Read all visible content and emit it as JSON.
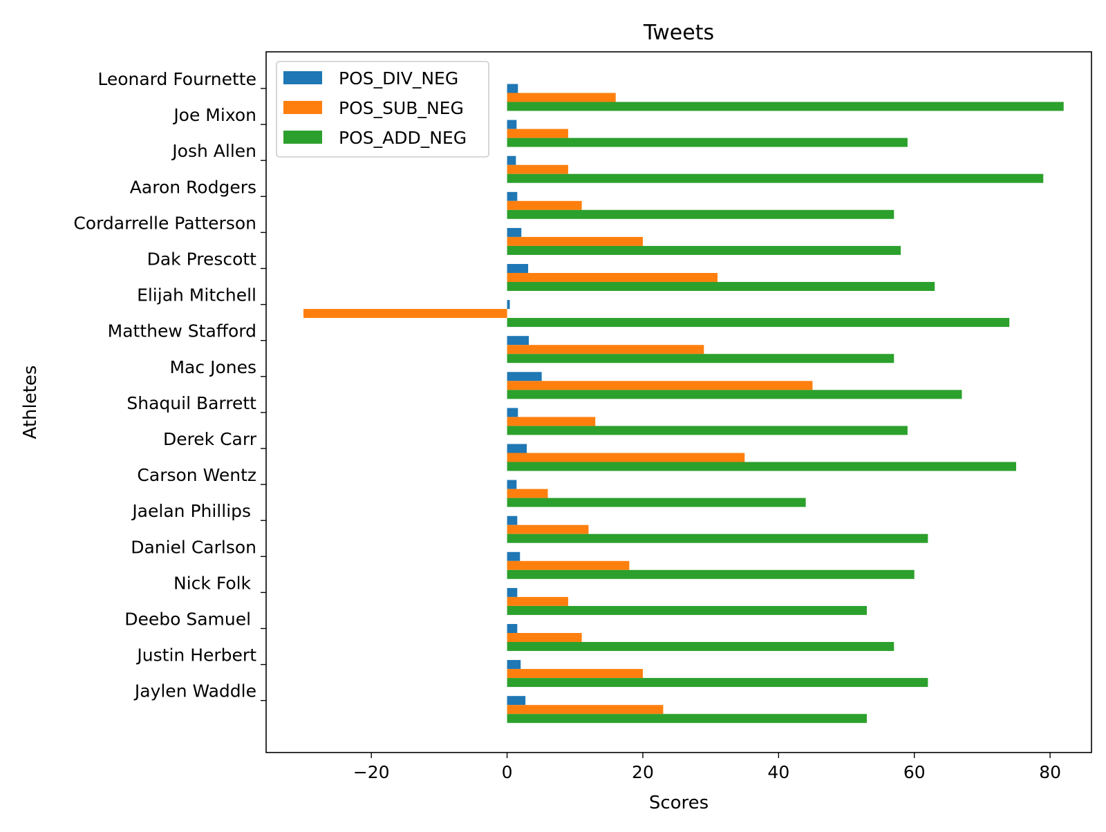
{
  "chart_data": {
    "type": "bar",
    "orientation": "horizontal",
    "title": "Tweets",
    "xlabel": "Scores",
    "ylabel": "Athletes",
    "xlim": [
      -35.5,
      86.1
    ],
    "xticks": [
      -20,
      0,
      20,
      40,
      60,
      80
    ],
    "xtick_labels": [
      "−20",
      "0",
      "20",
      "40",
      "60",
      "80"
    ],
    "grid": false,
    "legend_position": "top-left",
    "categories": [
      "Leonard Fournette",
      "Joe Mixon",
      "Josh Allen",
      "Aaron Rodgers",
      "Cordarrelle Patterson",
      "Dak Prescott",
      "Elijah Mitchell",
      "Matthew Stafford",
      "Mac Jones",
      "Shaquil Barrett",
      "Derek Carr",
      "Carson Wentz",
      "Jaelan Phillips ",
      "Daniel Carlson",
      "Nick Folk ",
      "Deebo Samuel ",
      "Justin Herbert",
      "Jaylen Waddle"
    ],
    "series": [
      {
        "name": "POS_DIV_NEG",
        "color": "#1f77b4",
        "values": [
          1.6,
          1.4,
          1.3,
          1.5,
          2.1,
          3.1,
          0.4,
          3.2,
          5.1,
          1.6,
          2.9,
          1.4,
          1.5,
          1.9,
          1.5,
          1.5,
          2.0,
          2.7
        ]
      },
      {
        "name": "POS_SUB_NEG",
        "color": "#ff7f0e",
        "values": [
          16,
          9,
          9,
          11,
          20,
          31,
          -30,
          29,
          45,
          13,
          35,
          6,
          12,
          18,
          9,
          11,
          20,
          23
        ]
      },
      {
        "name": "POS_ADD_NEG",
        "color": "#2ca02c",
        "values": [
          82,
          59,
          79,
          57,
          58,
          63,
          74,
          57,
          67,
          59,
          75,
          44,
          62,
          60,
          53,
          57,
          62,
          53
        ]
      }
    ]
  }
}
